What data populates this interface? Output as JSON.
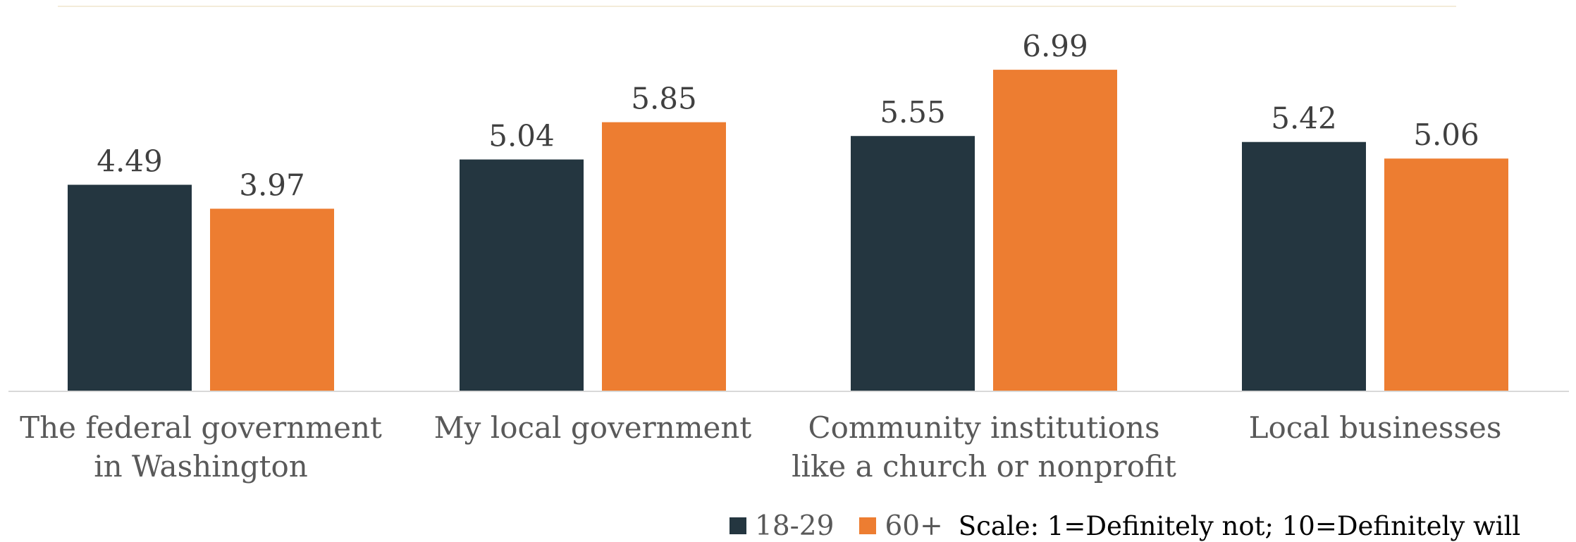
{
  "chart_data": {
    "type": "bar",
    "categories": [
      [
        "The federal government",
        "in Washington"
      ],
      [
        "My local government"
      ],
      [
        "Community institutions",
        "like a church or nonprofit"
      ],
      [
        "Local businesses"
      ]
    ],
    "series": [
      {
        "name": "18-29",
        "color": "#243640",
        "values": [
          4.49,
          5.04,
          5.55,
          5.42
        ]
      },
      {
        "name": "60+",
        "color": "#ED7D31",
        "values": [
          3.97,
          5.85,
          6.99,
          5.06
        ]
      }
    ],
    "value_labels": {
      "18-29": [
        "4.49",
        "5.04",
        "5.55",
        "5.42"
      ],
      "60+": [
        "3.97",
        "5.85",
        "6.99",
        "5.06"
      ]
    },
    "ylim": [
      0,
      8.2
    ],
    "grid": false,
    "legend_position": "bottom-right",
    "note": "Scale: 1=Definitely not; 10=Definitely will"
  }
}
